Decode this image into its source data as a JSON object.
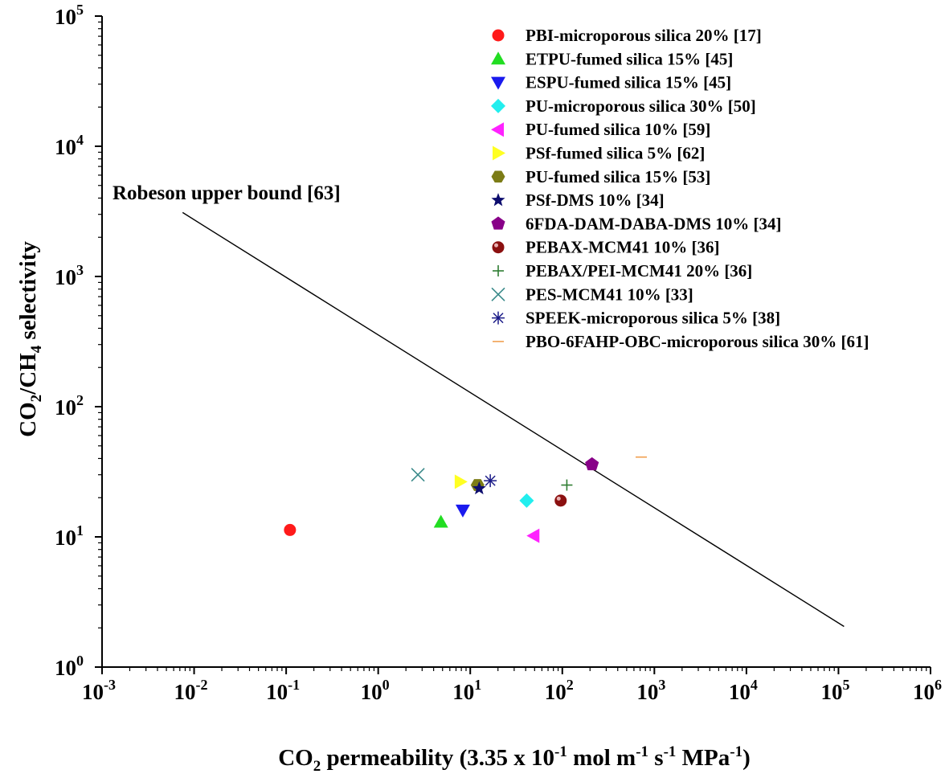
{
  "chart_data": {
    "type": "scatter",
    "xscale": "log",
    "yscale": "log",
    "xlim": [
      0.001,
      1000000
    ],
    "ylim": [
      1,
      100000
    ],
    "xlabel": {
      "prefix": "CO",
      "sub": "2",
      "middle": " permeability (3.35 x 10",
      "sup1": "-1",
      "unit1": " mol m",
      "sup2": "-1",
      "unit2": " s",
      "sup3": "-1",
      "unit3": " MPa",
      "sup4": "-1",
      "suffix": ")"
    },
    "ylabel": {
      "p1": "CO",
      "s1": "2",
      "p2": "/CH",
      "s2": "4",
      "p3": " selectivity"
    },
    "xticks": [
      {
        "base": "10",
        "exp": "-3",
        "value": 0.001
      },
      {
        "base": "10",
        "exp": "-2",
        "value": 0.01
      },
      {
        "base": "10",
        "exp": "-1",
        "value": 0.1
      },
      {
        "base": "10",
        "exp": "0",
        "value": 1
      },
      {
        "base": "10",
        "exp": "1",
        "value": 10
      },
      {
        "base": "10",
        "exp": "2",
        "value": 100
      },
      {
        "base": "10",
        "exp": "3",
        "value": 1000
      },
      {
        "base": "10",
        "exp": "4",
        "value": 10000
      },
      {
        "base": "10",
        "exp": "5",
        "value": 100000
      },
      {
        "base": "10",
        "exp": "6",
        "value": 1000000
      }
    ],
    "yticks": [
      {
        "base": "10",
        "exp": "0",
        "value": 1
      },
      {
        "base": "10",
        "exp": "1",
        "value": 10
      },
      {
        "base": "10",
        "exp": "2",
        "value": 100
      },
      {
        "base": "10",
        "exp": "3",
        "value": 1000
      },
      {
        "base": "10",
        "exp": "4",
        "value": 10000
      },
      {
        "base": "10",
        "exp": "5",
        "value": 100000
      }
    ],
    "upper_bound": {
      "label": "Robeson upper bound [63]",
      "x": [
        0.0075,
        115000
      ],
      "y": [
        3100,
        2.05
      ],
      "color": "#000000"
    },
    "series": [
      {
        "name": "PBI-microporous silica 20% [17]",
        "marker": "circle",
        "color": "#ff1a1a",
        "points": [
          [
            0.11,
            11.3
          ]
        ]
      },
      {
        "name": "ETPU-fumed silica 15% [45]",
        "marker": "triangle-up",
        "color": "#22dd22",
        "points": [
          [
            4.8,
            13
          ]
        ]
      },
      {
        "name": "ESPU-fumed silica 15% [45]",
        "marker": "triangle-down",
        "color": "#1a1aee",
        "points": [
          [
            8.3,
            16
          ]
        ]
      },
      {
        "name": "PU-microporous silica 30% [50]",
        "marker": "diamond",
        "color": "#22eeee",
        "points": [
          [
            41,
            19
          ]
        ]
      },
      {
        "name": "PU-fumed silica 10% [59]",
        "marker": "triangle-left",
        "color": "#ff22ff",
        "points": [
          [
            49,
            10.2
          ]
        ]
      },
      {
        "name": "PSf-fumed silica 5% [62]",
        "marker": "triangle-right",
        "color": "#ffff22",
        "points": [
          [
            7.8,
            26.5
          ]
        ]
      },
      {
        "name": "PU-fumed silica 15% [53]",
        "marker": "hexagon",
        "color": "#7c7c16",
        "points": [
          [
            12,
            25
          ]
        ]
      },
      {
        "name": "PSf-DMS 10% [34]",
        "marker": "star",
        "color": "#0d0d6e",
        "points": [
          [
            12.5,
            23.5
          ]
        ]
      },
      {
        "name": "6FDA-DAM-DABA-DMS 10% [34]",
        "marker": "pentagon",
        "color": "#880088",
        "points": [
          [
            210,
            36
          ]
        ]
      },
      {
        "name": "PEBAX-MCM41 10% [36]",
        "marker": "sphere",
        "color": "#8b1010",
        "points": [
          [
            96,
            19
          ]
        ]
      },
      {
        "name": "PEBAX/PEI-MCM41 20% [36]",
        "marker": "plus",
        "color": "#2e7d32",
        "points": [
          [
            112,
            25
          ]
        ]
      },
      {
        "name": "PES-MCM41 10% [33]",
        "marker": "x",
        "color": "#3a8a8a",
        "points": [
          [
            2.7,
            30
          ]
        ]
      },
      {
        "name": "SPEEK-microporous silica 5% [38]",
        "marker": "asterisk",
        "color": "#1a1a88",
        "points": [
          [
            16.5,
            27
          ]
        ]
      },
      {
        "name": "PBO-6FAHP-OBC-microporous silica 30% [61]",
        "marker": "dash",
        "color": "#f0a050",
        "points": [
          [
            720,
            41
          ]
        ]
      }
    ]
  }
}
